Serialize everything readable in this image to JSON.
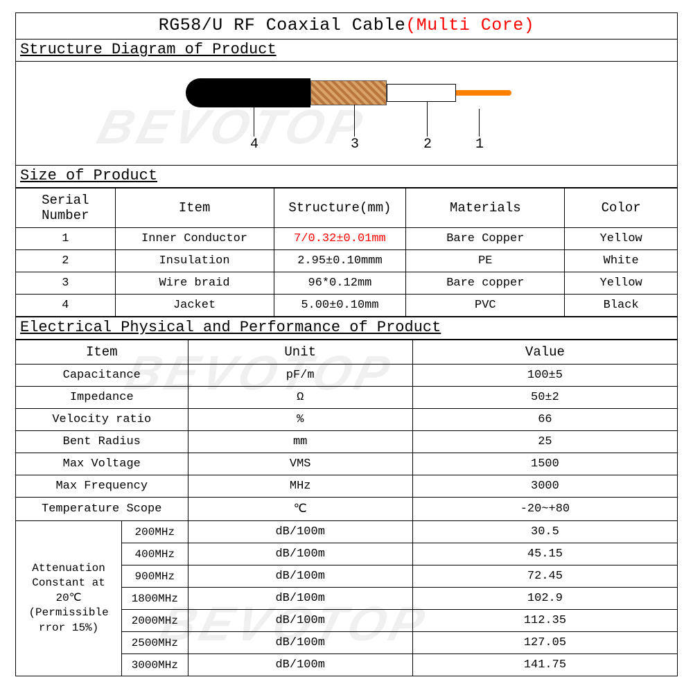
{
  "title_main": "RG58/U RF Coaxial Cable",
  "title_suffix": "(Multi Core)",
  "watermark_text": "BEVOTOP",
  "sections": {
    "diagram": "Structure Diagram of Product",
    "size": "Size of Product",
    "elec": "Electrical Physical and Performance of Product"
  },
  "diagram_labels": {
    "n1": "1",
    "n2": "2",
    "n3": "3",
    "n4": "4"
  },
  "size_table": {
    "headers": [
      "Serial Number",
      "Item",
      "Structure(mm)",
      "Materials",
      "Color"
    ],
    "col_widths_pct": [
      15,
      24,
      20,
      24,
      17
    ],
    "rows": [
      {
        "cells": [
          "1",
          "Inner Conductor",
          "7/0.32±0.01mm",
          "Bare Copper",
          "Yellow"
        ],
        "highlight_col": 2
      },
      {
        "cells": [
          "2",
          "Insulation",
          "2.95±0.10mmm",
          "PE",
          "White"
        ],
        "highlight_col": -1
      },
      {
        "cells": [
          "3",
          "Wire braid",
          "96*0.12mm",
          "Bare copper",
          "Yellow"
        ],
        "highlight_col": -1
      },
      {
        "cells": [
          "4",
          "Jacket",
          "5.00±0.10mm",
          "PVC",
          "Black"
        ],
        "highlight_col": -1
      }
    ]
  },
  "elec_table": {
    "headers": [
      "Item",
      "Unit",
      "Value"
    ],
    "col1_width_pct": 26,
    "col2_width_pct": 34,
    "col3_width_pct": 40,
    "simple_rows": [
      [
        "Capacitance",
        "pF/m",
        "100±5"
      ],
      [
        "Impedance",
        "Ω",
        "50±2"
      ],
      [
        "Velocity ratio",
        "%",
        "66"
      ],
      [
        "Bent Radius",
        "mm",
        "25"
      ],
      [
        "Max Voltage",
        "VMS",
        "1500"
      ],
      [
        "Max Frequency",
        "MHz",
        "3000"
      ],
      [
        "Temperature Scope",
        "℃",
        "-20~+80"
      ]
    ],
    "atten_label": "Attenuation Constant at 20℃ (Permissible rror 15%)",
    "atten_subcol_width_pct": 10,
    "atten_rows": [
      [
        "200MHz",
        "dB/100m",
        "30.5"
      ],
      [
        "400MHz",
        "dB/100m",
        "45.15"
      ],
      [
        "900MHz",
        "dB/100m",
        "72.45"
      ],
      [
        "1800MHz",
        "dB/100m",
        "102.9"
      ],
      [
        "2000MHz",
        "dB/100m",
        "112.35"
      ],
      [
        "2500MHz",
        "dB/100m",
        "127.05"
      ],
      [
        "3000MHz",
        "dB/100m",
        "141.75"
      ]
    ]
  },
  "colors": {
    "border": "#000000",
    "text": "#000000",
    "highlight": "#ff0000",
    "watermark": "rgba(0,0,0,0.06)",
    "jacket": "#000000",
    "braid1": "#d9a36a",
    "braid2": "#b9773d",
    "insulation": "#ffffff",
    "conductor": "#ff7f00",
    "background": "#ffffff"
  }
}
